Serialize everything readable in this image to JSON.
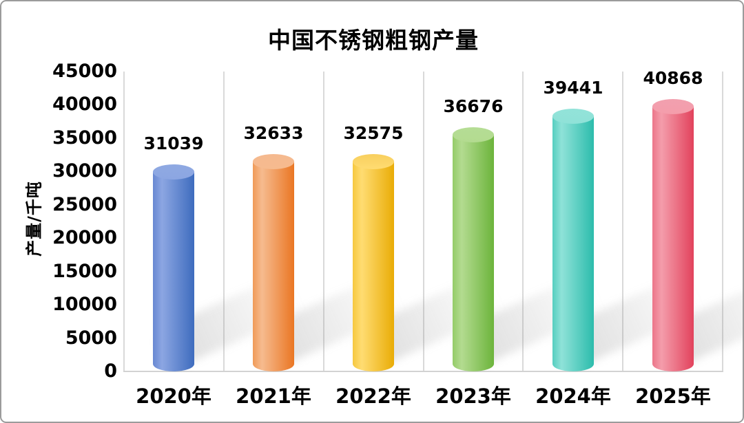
{
  "window": {
    "background": "#ffffff",
    "border_color": "#9b9b9b"
  },
  "chart_data": {
    "type": "bar",
    "subtype": "3d-cylinder-columns",
    "title": "中国不锈钢粗钢产量",
    "categories": [
      "2020年",
      "2021年",
      "2022年",
      "2023年",
      "2024年",
      "2025年"
    ],
    "values": [
      31039,
      32633,
      32575,
      36676,
      39441,
      40868
    ],
    "value_labels": [
      "31039",
      "32633",
      "32575",
      "36676",
      "39441",
      "40868"
    ],
    "xlabel": "",
    "ylabel": "产量/千吨",
    "ylim": [
      0,
      45000
    ],
    "ytick_step": 5000,
    "yticks": [
      "45000",
      "40000",
      "35000",
      "30000",
      "25000",
      "20000",
      "15000",
      "10000",
      "5000",
      "0"
    ],
    "grid": "vertical-category-separators-only",
    "legend": "none",
    "text_color": "#000000",
    "axis_line_color": "#d9d9d9",
    "bar_styles": [
      {
        "name": "blue",
        "top": "#8FA9E2",
        "gradient": [
          "#6888D2",
          "#8CA6E2",
          "#3E6CBE"
        ]
      },
      {
        "name": "orange",
        "top": "#F5B98F",
        "gradient": [
          "#F09A57",
          "#F6BB8F",
          "#EA7623"
        ]
      },
      {
        "name": "yellow",
        "top": "#F8CF5E",
        "gradient": [
          "#F6C83F",
          "#FFDC72",
          "#E9AC06"
        ]
      },
      {
        "name": "green",
        "top": "#B5DD95",
        "gradient": [
          "#94CC68",
          "#B3DB90",
          "#6CB43B"
        ]
      },
      {
        "name": "teal",
        "top": "#93E3D9",
        "gradient": [
          "#55CEBF",
          "#8FE2D8",
          "#2CBCAC"
        ]
      },
      {
        "name": "red",
        "top": "#F2A0AF",
        "gradient": [
          "#EC7589",
          "#F49DAB",
          "#E2425C"
        ]
      }
    ]
  }
}
